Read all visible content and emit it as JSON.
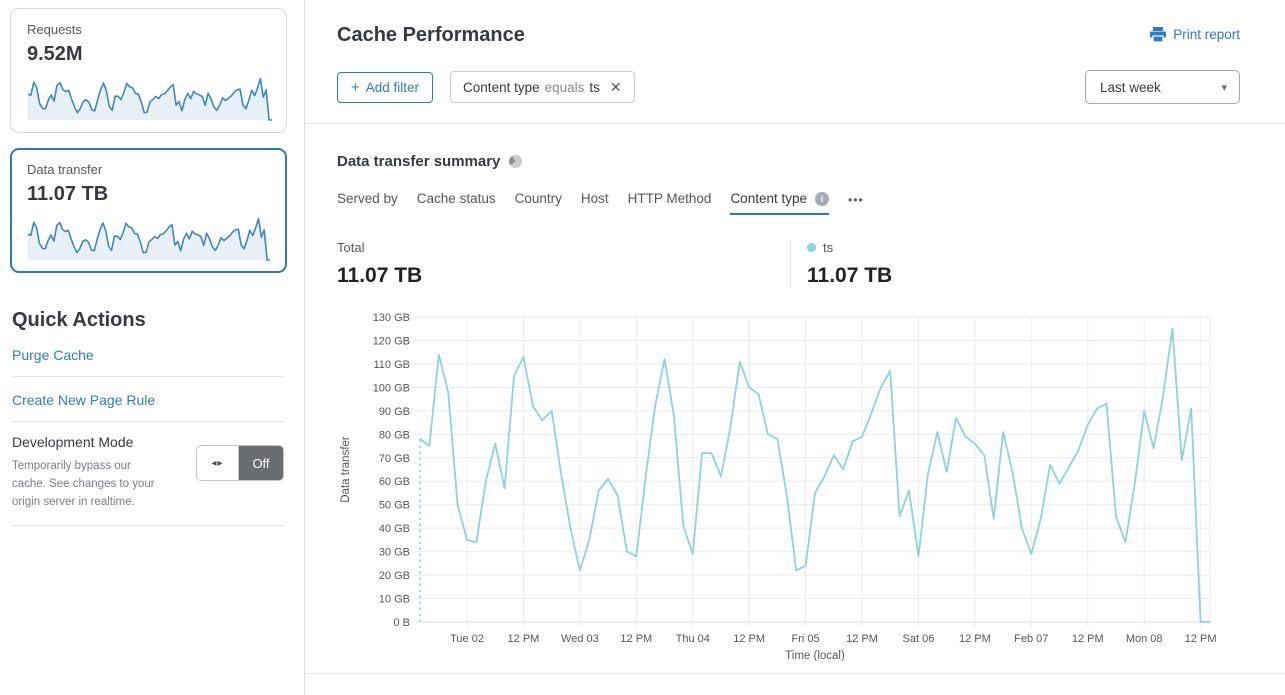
{
  "icons": {
    "plus": "+",
    "close": "✕",
    "caret": "▾",
    "toggle_arrows": "◂▸",
    "more": "•••",
    "info": "i"
  },
  "colors": {
    "link_blue": "#2f7bbf",
    "accent_border": "#2c7cb0",
    "chart_line": "#8cd2e1",
    "spark_line": "#3e86c0",
    "spark_fill": "#e9f1f8",
    "text_dark": "#36393f",
    "text_gray": "#56565c",
    "toggle_off_bg": "#696d70"
  },
  "sidebar": {
    "cards": [
      {
        "label": "Requests",
        "value": "9.52M",
        "selected": false,
        "sparkline": [
          78,
          75,
          114,
          98,
          50,
          35,
          34,
          60,
          76,
          57,
          105,
          113,
          92,
          86,
          90,
          63,
          40,
          22,
          35,
          56,
          61,
          54,
          30,
          28,
          62,
          92,
          112,
          88,
          41,
          29,
          72,
          72,
          62,
          83,
          111,
          100,
          97,
          80,
          78,
          54,
          22,
          24,
          55,
          62,
          71,
          65,
          77,
          79,
          89,
          100,
          107,
          45,
          56,
          28,
          63,
          81,
          64,
          87,
          79,
          76,
          71,
          44,
          81,
          64,
          40,
          29,
          44,
          67,
          59,
          66,
          73,
          84,
          91,
          93,
          45,
          34,
          59,
          90,
          74,
          96,
          125,
          69,
          91,
          0,
          0
        ]
      },
      {
        "label": "Data transfer",
        "value": "11.07 TB",
        "selected": true,
        "sparkline": [
          78,
          75,
          114,
          98,
          50,
          35,
          34,
          60,
          76,
          57,
          105,
          113,
          92,
          86,
          90,
          63,
          40,
          22,
          35,
          56,
          61,
          54,
          30,
          28,
          62,
          92,
          112,
          88,
          41,
          29,
          72,
          72,
          62,
          83,
          111,
          100,
          97,
          80,
          78,
          54,
          22,
          24,
          55,
          62,
          71,
          65,
          77,
          79,
          89,
          100,
          107,
          45,
          56,
          28,
          63,
          81,
          64,
          87,
          79,
          76,
          71,
          44,
          81,
          64,
          40,
          29,
          44,
          67,
          59,
          66,
          73,
          84,
          91,
          93,
          45,
          34,
          59,
          90,
          74,
          96,
          125,
          69,
          91,
          0,
          0
        ]
      }
    ],
    "quick_actions": {
      "title": "Quick Actions",
      "links": [
        {
          "label": "Purge Cache"
        },
        {
          "label": "Create New Page Rule"
        }
      ],
      "dev_mode": {
        "title": "Development Mode",
        "description": "Temporarily bypass our cache. See changes to your origin server in realtime.",
        "toggle_state": "Off"
      }
    }
  },
  "header": {
    "title": "Cache Performance",
    "print_label": "Print report"
  },
  "filters": {
    "add_label": "Add filter",
    "chip_field": "Content type",
    "chip_operator": "equals",
    "chip_value": "ts",
    "time_range": "Last week"
  },
  "summary": {
    "title": "Data transfer summary",
    "tabs": [
      {
        "label": "Served by",
        "active": false
      },
      {
        "label": "Cache status",
        "active": false
      },
      {
        "label": "Country",
        "active": false
      },
      {
        "label": "Host",
        "active": false
      },
      {
        "label": "HTTP Method",
        "active": false
      },
      {
        "label": "Content type",
        "active": true
      }
    ],
    "totals": {
      "total_label": "Total",
      "total_value": "11.07 TB",
      "series_label": "ts",
      "series_value": "11.07 TB"
    }
  },
  "chart_data": {
    "type": "line",
    "title": "Data transfer summary — ts",
    "xlabel": "Time (local)",
    "ylabel": "Data transfer",
    "unit": "GB",
    "ylim": [
      0,
      130
    ],
    "ytick_interval": 10,
    "ytick_labels": [
      "0 B",
      "10 GB",
      "20 GB",
      "30 GB",
      "40 GB",
      "50 GB",
      "60 GB",
      "70 GB",
      "80 GB",
      "90 GB",
      "100 GB",
      "110 GB",
      "120 GB",
      "130 GB"
    ],
    "xtick_labels": [
      "Tue 02",
      "12 PM",
      "Wed 03",
      "12 PM",
      "Thu 04",
      "12 PM",
      "Fri 05",
      "12 PM",
      "Sat 06",
      "12 PM",
      "Feb 07",
      "12 PM",
      "Mon 08",
      "12 PM"
    ],
    "x_range_hours": 168,
    "first_tick_hour": 10,
    "tick_interval_hours": 12,
    "grid": true,
    "start_dashed_to_zero": true,
    "series": [
      {
        "name": "ts",
        "color": "#8cd2e1",
        "step_hours": 2,
        "values": [
          78,
          75,
          114,
          98,
          50,
          35,
          34,
          60,
          76,
          57,
          105,
          113,
          92,
          86,
          90,
          63,
          40,
          22,
          35,
          56,
          61,
          54,
          30,
          28,
          62,
          92,
          112,
          88,
          41,
          29,
          72,
          72,
          62,
          83,
          111,
          100,
          97,
          80,
          78,
          54,
          22,
          24,
          55,
          62,
          71,
          65,
          77,
          79,
          89,
          100,
          107,
          45,
          56,
          28,
          63,
          81,
          64,
          87,
          79,
          76,
          71,
          44,
          81,
          64,
          40,
          29,
          44,
          67,
          59,
          66,
          73,
          84,
          91,
          93,
          45,
          34,
          59,
          90,
          74,
          96,
          125,
          69,
          91,
          0,
          0
        ]
      }
    ]
  }
}
